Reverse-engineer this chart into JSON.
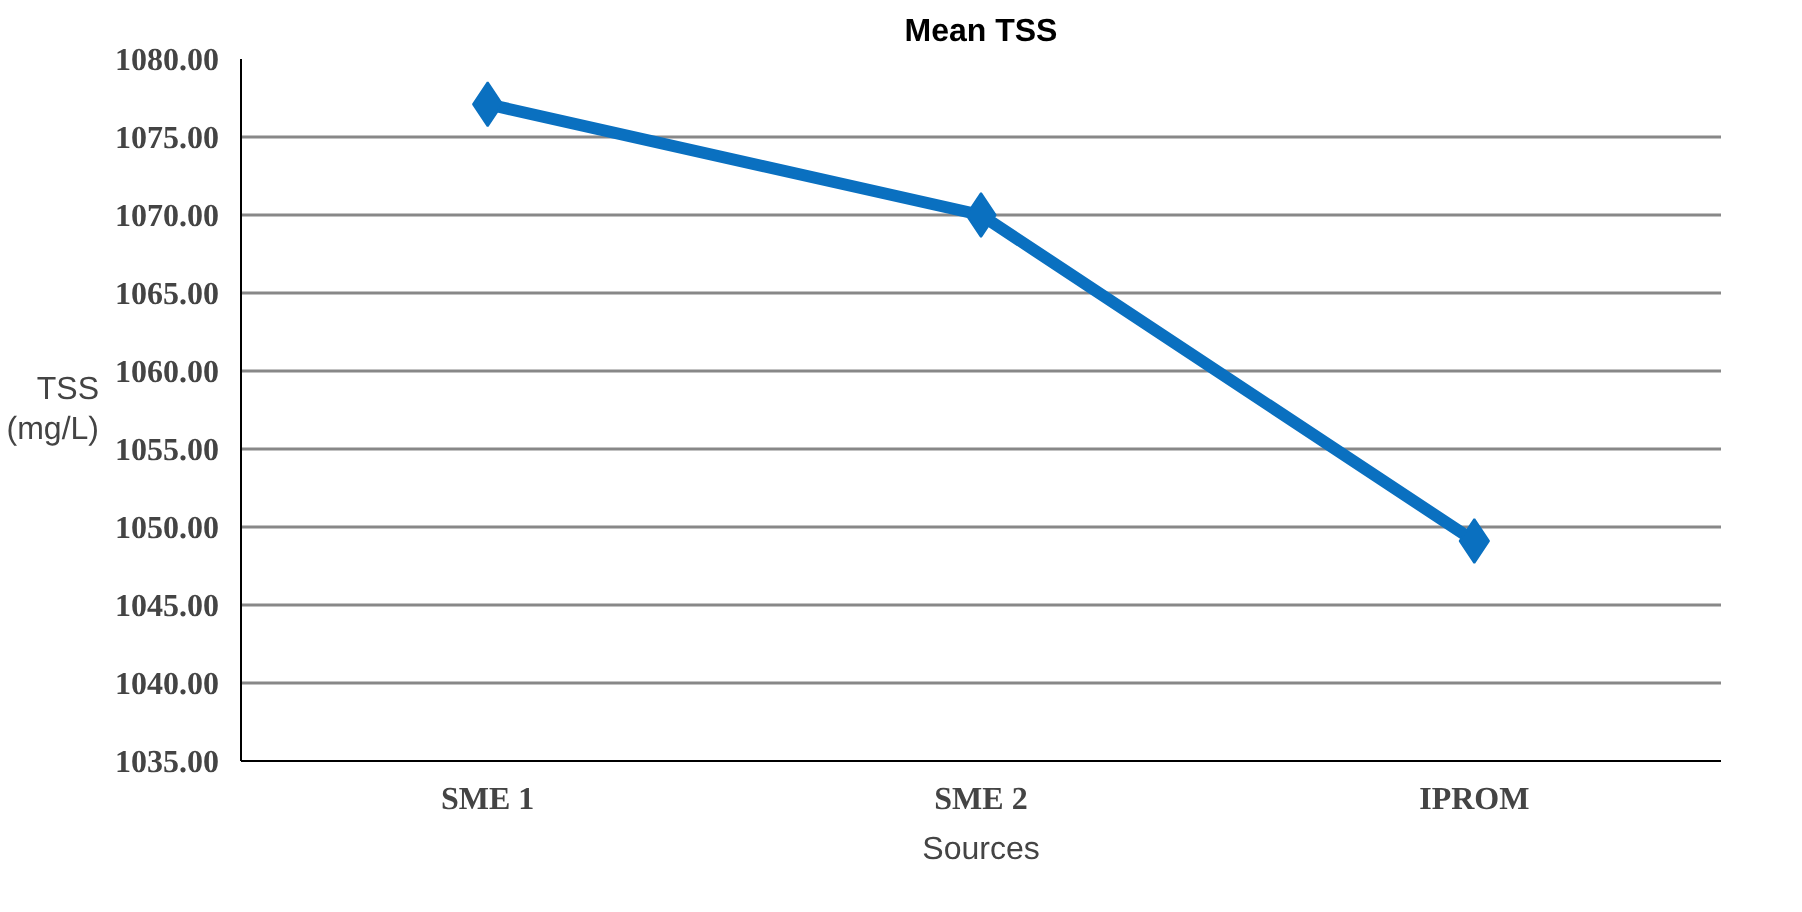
{
  "chart_data": {
    "type": "line",
    "title": "Mean TSS",
    "xlabel": "Sources",
    "ylabel": "TSS (mg/L)",
    "categories": [
      "SME 1",
      "SME 2",
      "IPROM"
    ],
    "series": [
      {
        "color": "#0a70c0",
        "values": [
          1077.1,
          1070.0,
          1049.1
        ]
      }
    ],
    "ylim": [
      1035,
      1080
    ],
    "yticks": [
      {
        "value": 1035,
        "label": "1035.00"
      },
      {
        "value": 1040,
        "label": "1040.00"
      },
      {
        "value": 1045,
        "label": "1045.00"
      },
      {
        "value": 1050,
        "label": "1050.00"
      },
      {
        "value": 1055,
        "label": "1055.00"
      },
      {
        "value": 1060,
        "label": "1060.00"
      },
      {
        "value": 1065,
        "label": "1065.00"
      },
      {
        "value": 1070,
        "label": "1070.00"
      },
      {
        "value": 1075,
        "label": "1075.00"
      },
      {
        "value": 1080,
        "label": "1080.00"
      }
    ],
    "grid": "y",
    "marker": "diamond",
    "line_style": "solid"
  }
}
